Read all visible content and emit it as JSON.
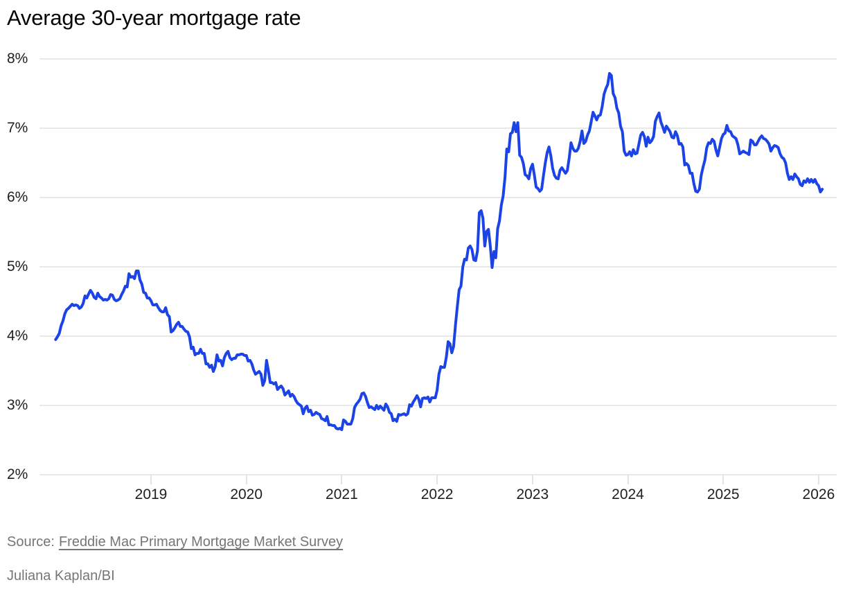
{
  "chart": {
    "title": "Average 30-year mortgage rate",
    "colors": {
      "line": "#1b43e6",
      "grid": "#e8e8e8",
      "axis_text": "#202022",
      "muted_text": "#75757a",
      "background": "#ffffff"
    }
  },
  "chart_data": {
    "type": "line",
    "title": "Average 30-year mortgage rate",
    "series_name": "Average 30-year fixed mortgage rate",
    "unit": "percent",
    "grid": "horizontal",
    "legend": "none",
    "ylim": [
      2,
      8
    ],
    "xlim_years": [
      2018.0,
      2026.07
    ],
    "y_tick_labels": [
      "8%",
      "7%",
      "6%",
      "5%",
      "4%",
      "3%",
      "2%"
    ],
    "x_tick_labels": [
      "2019",
      "2020",
      "2021",
      "2022",
      "2023",
      "2024",
      "2025",
      "2026"
    ],
    "weekly_rates_by_year": {
      "2018": [
        3.95,
        3.99,
        4.04,
        4.15,
        4.22,
        4.32,
        4.38,
        4.4,
        4.43,
        4.46,
        4.44,
        4.45,
        4.44,
        4.4,
        4.42,
        4.47,
        4.58,
        4.55,
        4.61,
        4.66,
        4.62,
        4.56,
        4.54,
        4.62,
        4.57,
        4.55,
        4.52,
        4.53,
        4.52,
        4.54,
        4.6,
        4.59,
        4.53,
        4.51,
        4.52,
        4.54,
        4.6,
        4.65,
        4.72,
        4.71,
        4.9,
        4.85,
        4.86,
        4.83,
        4.94,
        4.94,
        4.81,
        4.75,
        4.63,
        4.62,
        4.55,
        4.55
      ],
      "2019": [
        4.51,
        4.45,
        4.45,
        4.46,
        4.41,
        4.37,
        4.35,
        4.35,
        4.41,
        4.31,
        4.28,
        4.06,
        4.08,
        4.12,
        4.17,
        4.2,
        4.14,
        4.14,
        4.1,
        4.07,
        4.06,
        3.99,
        3.82,
        3.84,
        3.73,
        3.75,
        3.75,
        3.81,
        3.75,
        3.75,
        3.6,
        3.6,
        3.55,
        3.58,
        3.49,
        3.56,
        3.73,
        3.64,
        3.65,
        3.57,
        3.69,
        3.75,
        3.78,
        3.69,
        3.66,
        3.68,
        3.68,
        3.73,
        3.73,
        3.74,
        3.74,
        3.72
      ],
      "2020": [
        3.72,
        3.64,
        3.65,
        3.6,
        3.51,
        3.45,
        3.47,
        3.49,
        3.45,
        3.29,
        3.36,
        3.65,
        3.5,
        3.33,
        3.33,
        3.31,
        3.33,
        3.23,
        3.26,
        3.28,
        3.24,
        3.15,
        3.18,
        3.21,
        3.13,
        3.16,
        3.13,
        3.07,
        3.03,
        3.01,
        2.99,
        2.88,
        2.96,
        2.99,
        2.91,
        2.93,
        2.86,
        2.87,
        2.9,
        2.88,
        2.87,
        2.81,
        2.8,
        2.78,
        2.84,
        2.72,
        2.72,
        2.71,
        2.71,
        2.67,
        2.66,
        2.67
      ],
      "2021": [
        2.65,
        2.79,
        2.77,
        2.73,
        2.73,
        2.73,
        2.81,
        2.97,
        3.02,
        3.05,
        3.09,
        3.17,
        3.18,
        3.13,
        3.04,
        2.97,
        2.98,
        2.96,
        2.94,
        3.0,
        2.95,
        2.99,
        2.96,
        2.93,
        3.02,
        2.98,
        2.9,
        2.88,
        2.78,
        2.8,
        2.77,
        2.87,
        2.86,
        2.87,
        2.88,
        2.86,
        2.88,
        3.01,
        2.99,
        3.05,
        3.09,
        3.14,
        3.09,
        2.98,
        3.1,
        3.11,
        3.1,
        3.12,
        3.05,
        3.11,
        3.11,
        3.11
      ],
      "2022": [
        3.22,
        3.45,
        3.56,
        3.55,
        3.55,
        3.69,
        3.92,
        3.89,
        3.76,
        3.85,
        4.16,
        4.42,
        4.67,
        4.72,
        5.0,
        5.11,
        5.1,
        5.27,
        5.3,
        5.25,
        5.1,
        5.09,
        5.23,
        5.78,
        5.81,
        5.7,
        5.3,
        5.51,
        5.54,
        5.3,
        4.99,
        5.22,
        5.13,
        5.55,
        5.66,
        5.89,
        6.02,
        6.29,
        6.7,
        6.66,
        6.92,
        6.94,
        7.08,
        6.95,
        7.08,
        6.61,
        6.58,
        6.49,
        6.33,
        6.31,
        6.27,
        6.42
      ],
      "2023": [
        6.48,
        6.33,
        6.15,
        6.13,
        6.09,
        6.12,
        6.32,
        6.5,
        6.65,
        6.73,
        6.6,
        6.42,
        6.32,
        6.28,
        6.27,
        6.39,
        6.43,
        6.39,
        6.35,
        6.39,
        6.57,
        6.79,
        6.71,
        6.67,
        6.67,
        6.71,
        6.81,
        6.96,
        6.78,
        6.81,
        6.9,
        6.96,
        7.09,
        7.23,
        7.18,
        7.12,
        7.18,
        7.19,
        7.31,
        7.49,
        7.57,
        7.63,
        7.79,
        7.76,
        7.5,
        7.44,
        7.29,
        7.22,
        7.03,
        6.95,
        6.67,
        6.61
      ],
      "2024": [
        6.62,
        6.66,
        6.6,
        6.69,
        6.63,
        6.64,
        6.77,
        6.9,
        6.94,
        6.88,
        6.74,
        6.87,
        6.79,
        6.82,
        6.88,
        7.1,
        7.17,
        7.22,
        7.09,
        7.02,
        6.94,
        7.03,
        6.99,
        6.95,
        6.87,
        6.86,
        6.95,
        6.89,
        6.77,
        6.78,
        6.73,
        6.47,
        6.49,
        6.46,
        6.35,
        6.35,
        6.2,
        6.09,
        6.08,
        6.12,
        6.32,
        6.44,
        6.54,
        6.72,
        6.79,
        6.78,
        6.84,
        6.81,
        6.69,
        6.6,
        6.72,
        6.85
      ],
      "2025": [
        6.91,
        6.93,
        7.04,
        6.96,
        6.95,
        6.89,
        6.87,
        6.85,
        6.76,
        6.63,
        6.65,
        6.67,
        6.65,
        6.64,
        6.62,
        6.83,
        6.81,
        6.76,
        6.76,
        6.81,
        6.86,
        6.89,
        6.85,
        6.84,
        6.81,
        6.77,
        6.67,
        6.72,
        6.75,
        6.74,
        6.72,
        6.63,
        6.58,
        6.56,
        6.5,
        6.35,
        6.26,
        6.3,
        6.26,
        6.34,
        6.3,
        6.27,
        6.19,
        6.17,
        6.24,
        6.22,
        6.27,
        6.22,
        6.26,
        6.22,
        6.26,
        6.2
      ],
      "2026": [
        6.17,
        6.08,
        6.12
      ]
    }
  },
  "footer": {
    "source_label": "Source:",
    "source_link": "Freddie Mac Primary Mortgage Market Survey",
    "credit": "Juliana Kaplan/BI"
  }
}
